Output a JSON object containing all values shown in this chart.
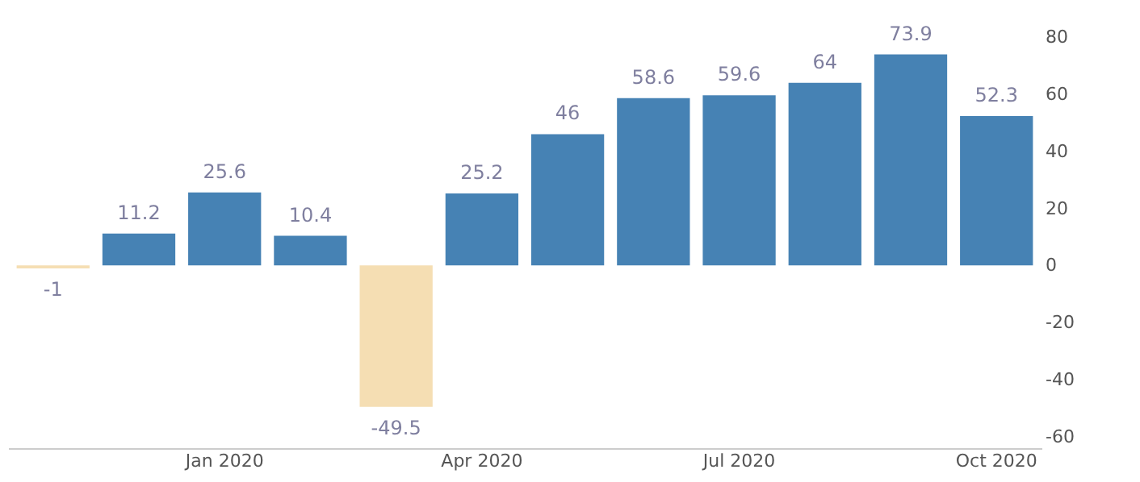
{
  "chart_data": {
    "type": "bar",
    "categories": [
      null,
      null,
      "Jan 2020",
      null,
      null,
      "Apr 2020",
      null,
      null,
      "Jul 2020",
      null,
      null,
      "Oct 2020"
    ],
    "values": [
      -1,
      11.2,
      25.6,
      10.4,
      -49.5,
      25.2,
      46,
      58.6,
      59.6,
      64,
      73.9,
      52.3
    ],
    "colors": [
      "#f5deb3",
      "#4682b4",
      "#4682b4",
      "#4682b4",
      "#f5deb3",
      "#4682b4",
      "#4682b4",
      "#4682b4",
      "#4682b4",
      "#4682b4",
      "#4682b4",
      "#4682b4"
    ],
    "ylim": [
      -64,
      80
    ],
    "yticks": [
      -60,
      -40,
      -20,
      0,
      20,
      40,
      60,
      80
    ],
    "data_labels": true,
    "grid": false
  }
}
